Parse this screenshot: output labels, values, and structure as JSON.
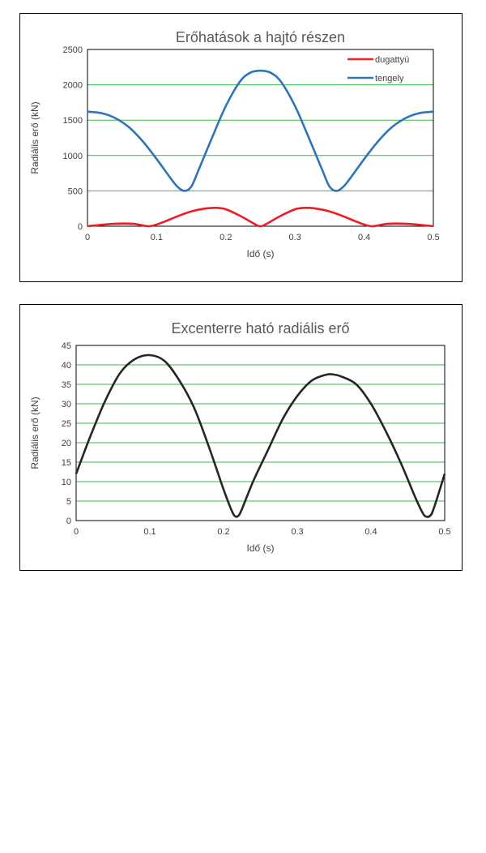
{
  "chart_data": [
    {
      "type": "line",
      "title": "Erőhatások a hajtó részen",
      "xlabel": "Idő (s)",
      "ylabel": "Radiális erő (kN)",
      "xlim": [
        0,
        0.5
      ],
      "ylim": [
        0,
        2500
      ],
      "x_ticks": [
        "0",
        "0.1",
        "0.2",
        "0.3",
        "0.4",
        "0.5"
      ],
      "y_ticks": [
        "0",
        "500",
        "1000",
        "1500",
        "2000",
        "2500"
      ],
      "grid": true,
      "legend": "top-right",
      "series": [
        {
          "name": "dugattyú",
          "color": "#ee1c24",
          "x": [
            0,
            0.02,
            0.04,
            0.055,
            0.07,
            0.09,
            0.11,
            0.13,
            0.15,
            0.17,
            0.185,
            0.2,
            0.22,
            0.24,
            0.25,
            0.26,
            0.28,
            0.3,
            0.315,
            0.33,
            0.35,
            0.37,
            0.39,
            0.41,
            0.43,
            0.445,
            0.46,
            0.48,
            0.5
          ],
          "y": [
            0,
            20,
            35,
            38,
            30,
            0,
            60,
            140,
            210,
            250,
            260,
            240,
            150,
            40,
            0,
            40,
            150,
            240,
            260,
            250,
            210,
            140,
            60,
            0,
            30,
            38,
            35,
            20,
            0
          ]
        },
        {
          "name": "tengely",
          "color": "#2e75b6",
          "x": [
            0,
            0.02,
            0.04,
            0.06,
            0.08,
            0.1,
            0.12,
            0.13,
            0.14,
            0.15,
            0.16,
            0.18,
            0.2,
            0.22,
            0.235,
            0.25,
            0.265,
            0.28,
            0.3,
            0.32,
            0.34,
            0.35,
            0.36,
            0.37,
            0.38,
            0.4,
            0.42,
            0.44,
            0.46,
            0.48,
            0.5
          ],
          "y": [
            1620,
            1600,
            1530,
            1400,
            1200,
            950,
            680,
            560,
            500,
            560,
            780,
            1250,
            1700,
            2040,
            2170,
            2200,
            2170,
            2040,
            1700,
            1250,
            780,
            560,
            500,
            560,
            680,
            950,
            1200,
            1400,
            1530,
            1600,
            1620
          ]
        }
      ]
    },
    {
      "type": "line",
      "title": "Excenterre ható radiális erő",
      "xlabel": "Idő (s)",
      "ylabel": "Radiális erő (kN)",
      "xlim": [
        0,
        0.5
      ],
      "ylim": [
        0,
        45
      ],
      "x_ticks": [
        "0",
        "0.1",
        "0.2",
        "0.3",
        "0.4",
        "0.5"
      ],
      "y_ticks": [
        "0",
        "5",
        "10",
        "15",
        "20",
        "25",
        "30",
        "35",
        "40",
        "45"
      ],
      "grid": true,
      "series": [
        {
          "color": "#262626",
          "x": [
            0,
            0.02,
            0.04,
            0.06,
            0.08,
            0.1,
            0.12,
            0.14,
            0.16,
            0.18,
            0.2,
            0.21,
            0.215,
            0.22,
            0.225,
            0.24,
            0.26,
            0.28,
            0.3,
            0.32,
            0.34,
            0.35,
            0.36,
            0.38,
            0.4,
            0.42,
            0.44,
            0.46,
            0.47,
            0.475,
            0.48,
            0.485,
            0.5
          ],
          "y": [
            12,
            22,
            31,
            38,
            41.5,
            42.5,
            41,
            36,
            29,
            19,
            8,
            3,
            1.2,
            1.2,
            3,
            10,
            18,
            26,
            32,
            36,
            37.5,
            37.5,
            37,
            35,
            30,
            23,
            15,
            6,
            2,
            1,
            1.2,
            3,
            12
          ]
        }
      ]
    }
  ]
}
